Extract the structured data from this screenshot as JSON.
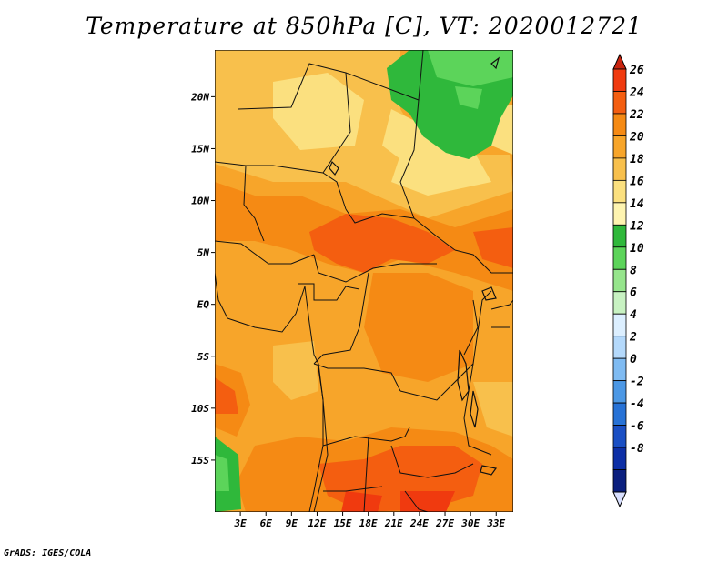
{
  "title": "Temperature at 850hPa [C], VT: 2020012721",
  "credit": "GrADS: IGES/COLA",
  "map": {
    "lat_labels": [
      "20N",
      "15N",
      "10N",
      "5N",
      "EQ",
      "5S",
      "10S",
      "15S"
    ],
    "lon_labels": [
      "3E",
      "6E",
      "9E",
      "12E",
      "15E",
      "18E",
      "21E",
      "24E",
      "27E",
      "30E",
      "33E"
    ],
    "lon_range": [
      0,
      35
    ],
    "lat_range": [
      -20,
      24.5
    ]
  },
  "colorbar": {
    "labels": [
      "26",
      "24",
      "22",
      "20",
      "18",
      "16",
      "14",
      "12",
      "10",
      "8",
      "6",
      "4",
      "2",
      "0",
      "-2",
      "-4",
      "-6",
      "-8"
    ],
    "colors": [
      "#f03a0f",
      "#f45e10",
      "#f58a14",
      "#f7a52a",
      "#f8c04c",
      "#fbe07f",
      "#fef4b0",
      "#2fb83b",
      "#5cd45a",
      "#96e58c",
      "#c8f2c2",
      "#dcefff",
      "#b4d9fb",
      "#7fbbf2",
      "#4c98e5",
      "#2772d6",
      "#1a4fc4",
      "#0d2fa6",
      "#0b1f7e"
    ],
    "high_arrow_color": "#c8240f",
    "low_arrow_color": "#d9e0ff"
  }
}
